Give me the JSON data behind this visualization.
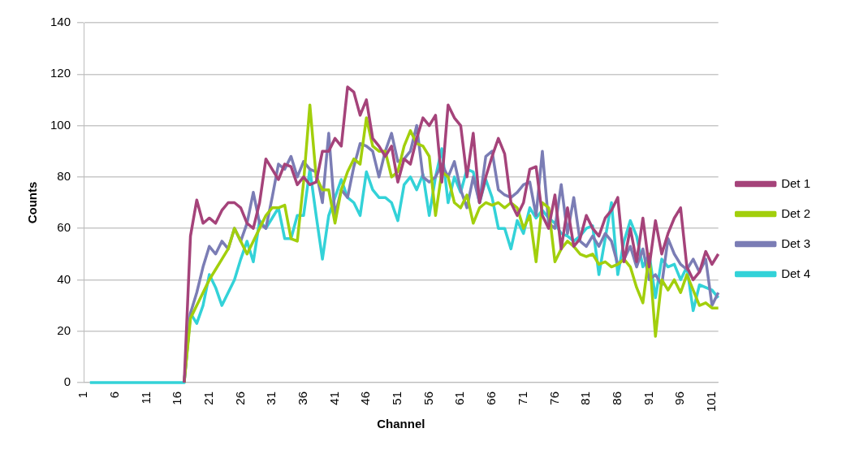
{
  "chart_data": {
    "type": "line",
    "xlabel": "Channel",
    "ylabel": "Counts",
    "categories": [
      "1",
      null,
      null,
      null,
      null,
      "6",
      null,
      null,
      null,
      null,
      "11",
      null,
      null,
      null,
      null,
      "16",
      null,
      null,
      null,
      null,
      "21",
      null,
      null,
      null,
      null,
      "26",
      null,
      null,
      null,
      null,
      "31",
      null,
      null,
      null,
      null,
      "36",
      null,
      null,
      null,
      null,
      "41",
      null,
      null,
      null,
      null,
      "46",
      null,
      null,
      null,
      null,
      "51",
      null,
      null,
      null,
      null,
      "56",
      null,
      null,
      null,
      null,
      "61",
      null,
      null,
      null,
      null,
      "66",
      null,
      null,
      null,
      null,
      "71",
      null,
      null,
      null,
      null,
      "76",
      null,
      null,
      null,
      null,
      "81",
      null,
      null,
      null,
      null,
      "86",
      null,
      null,
      null,
      null,
      "91",
      null,
      null,
      null,
      null,
      "96",
      null,
      null,
      null,
      null,
      "101",
      null
    ],
    "series": [
      {
        "name": "Det 1",
        "color": "#a5437a",
        "values": [
          null,
          null,
          null,
          null,
          null,
          null,
          null,
          null,
          null,
          null,
          null,
          null,
          null,
          null,
          null,
          null,
          0,
          57,
          71,
          62,
          64,
          62,
          67,
          70,
          70,
          68,
          62,
          60,
          70,
          87,
          83,
          79,
          85,
          84,
          77,
          80,
          77,
          78,
          90,
          90,
          95,
          92,
          115,
          113,
          104,
          110,
          95,
          92,
          88,
          92,
          78,
          87,
          85,
          95,
          103,
          100,
          104,
          78,
          108,
          103,
          100,
          80,
          97,
          70,
          80,
          88,
          95,
          89,
          70,
          65,
          70,
          83,
          84,
          65,
          60,
          73,
          52,
          68,
          53,
          56,
          65,
          60,
          57,
          64,
          67,
          72,
          47,
          60,
          47,
          64,
          45,
          63,
          50,
          58,
          64,
          68,
          45,
          40,
          43,
          51,
          46,
          50
        ]
      },
      {
        "name": "Det 2",
        "color": "#a2cf0c",
        "values": [
          null,
          null,
          null,
          null,
          null,
          null,
          null,
          null,
          null,
          null,
          null,
          null,
          null,
          null,
          null,
          null,
          0,
          25,
          30,
          35,
          40,
          44,
          48,
          52,
          60,
          55,
          50,
          55,
          60,
          65,
          68,
          68,
          69,
          56,
          55,
          78,
          108,
          80,
          75,
          75,
          62,
          75,
          82,
          87,
          85,
          103,
          92,
          90,
          90,
          80,
          82,
          92,
          98,
          93,
          92,
          88,
          65,
          82,
          80,
          70,
          68,
          73,
          62,
          68,
          70,
          69,
          70,
          68,
          70,
          68,
          60,
          65,
          47,
          70,
          68,
          47,
          52,
          55,
          53,
          50,
          49,
          50,
          46,
          47,
          45,
          46,
          48,
          45,
          37,
          31,
          50,
          18,
          40,
          36,
          40,
          35,
          42,
          36,
          30,
          31,
          29,
          29
        ]
      },
      {
        "name": "Det 3",
        "color": "#7b7db5",
        "values": [
          null,
          null,
          null,
          null,
          null,
          null,
          null,
          null,
          null,
          null,
          null,
          null,
          null,
          null,
          null,
          null,
          0,
          27,
          35,
          45,
          53,
          50,
          55,
          52,
          60,
          55,
          62,
          74,
          62,
          60,
          72,
          85,
          83,
          88,
          80,
          86,
          83,
          82,
          70,
          97,
          65,
          75,
          72,
          84,
          93,
          92,
          90,
          80,
          90,
          97,
          86,
          87,
          90,
          100,
          80,
          78,
          80,
          85,
          80,
          86,
          75,
          68,
          80,
          70,
          88,
          90,
          75,
          73,
          72,
          74,
          77,
          78,
          65,
          90,
          62,
          60,
          77,
          58,
          72,
          55,
          53,
          57,
          53,
          58,
          55,
          46,
          48,
          53,
          45,
          52,
          40,
          42,
          38,
          56,
          50,
          46,
          44,
          48,
          43,
          48,
          30,
          35
        ]
      },
      {
        "name": "Det 4",
        "color": "#33d2d8",
        "values": [
          null,
          0,
          0,
          0,
          0,
          0,
          0,
          0,
          0,
          0,
          0,
          0,
          0,
          0,
          0,
          0,
          0,
          27,
          23,
          30,
          42,
          37,
          30,
          35,
          40,
          48,
          55,
          47,
          63,
          60,
          64,
          68,
          56,
          56,
          65,
          65,
          83,
          65,
          48,
          65,
          72,
          79,
          72,
          70,
          65,
          82,
          75,
          72,
          72,
          70,
          63,
          77,
          80,
          75,
          81,
          65,
          80,
          91,
          70,
          80,
          74,
          83,
          82,
          70,
          79,
          72,
          60,
          60,
          52,
          63,
          58,
          68,
          64,
          67,
          64,
          62,
          58,
          57,
          55,
          57,
          60,
          61,
          42,
          56,
          70,
          42,
          55,
          63,
          57,
          45,
          50,
          33,
          48,
          45,
          46,
          40,
          45,
          28,
          38,
          37,
          36,
          33
        ]
      }
    ],
    "ylim": [
      0,
      140
    ],
    "yticks": [
      0,
      20,
      40,
      60,
      80,
      100,
      120,
      140
    ],
    "grid": "y",
    "legend": "right",
    "marker": "none",
    "line_style": "solid"
  }
}
